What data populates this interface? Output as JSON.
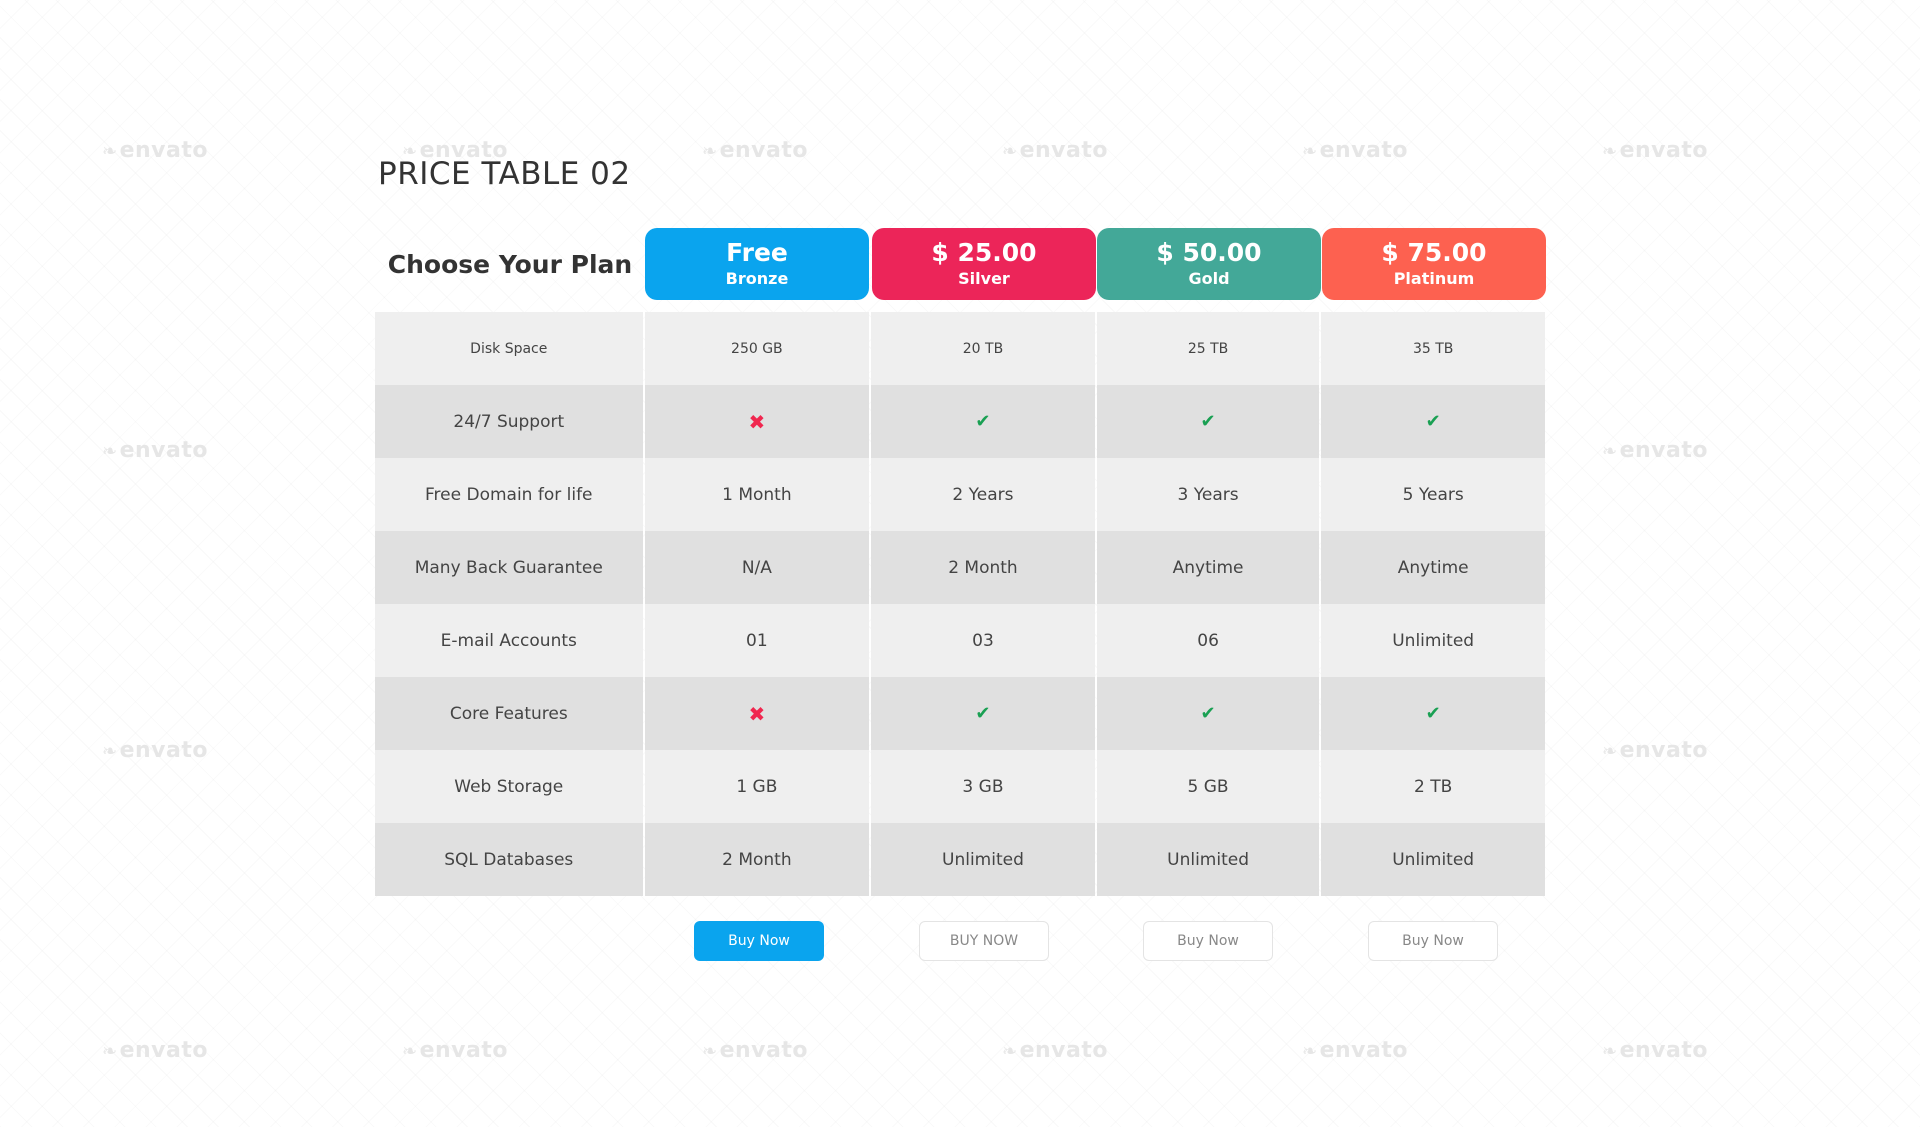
{
  "title": "PRICE TABLE 02",
  "choose_label": "Choose Your Plan",
  "watermark_text": "envato",
  "colors": {
    "bronze": "#0aa4ee",
    "silver": "#ec2559",
    "gold": "#43a898",
    "platinum": "#fd6150",
    "cross": "#f0274f",
    "check": "#1aa053"
  },
  "plans": [
    {
      "price": "Free",
      "tier": "Bronze",
      "button": "Buy Now"
    },
    {
      "price": "$ 25.00",
      "tier": "Silver",
      "button": "BUY NOW"
    },
    {
      "price": "$ 50.00",
      "tier": "Gold",
      "button": "Buy Now"
    },
    {
      "price": "$ 75.00",
      "tier": "Platinum",
      "button": "Buy Now"
    }
  ],
  "rows": [
    {
      "feature": "Disk Space",
      "values": [
        "250 GB",
        "20 TB",
        "25 TB",
        "35 TB"
      ]
    },
    {
      "feature": "24/7 Support",
      "values": [
        "✖",
        "✔",
        "✔",
        "✔"
      ]
    },
    {
      "feature": "Free Domain for life",
      "values": [
        "1 Month",
        "2 Years",
        "3 Years",
        "5 Years"
      ]
    },
    {
      "feature": "Many Back Guarantee",
      "values": [
        "N/A",
        "2 Month",
        "Anytime",
        "Anytime"
      ]
    },
    {
      "feature": "E-mail Accounts",
      "values": [
        "01",
        "03",
        "06",
        "Unlimited"
      ]
    },
    {
      "feature": "Core Features",
      "values": [
        "✖",
        "✔",
        "✔",
        "✔"
      ]
    },
    {
      "feature": "Web Storage",
      "values": [
        "1 GB",
        "3 GB",
        "5 GB",
        "2 TB"
      ]
    },
    {
      "feature": "SQL Databases",
      "values": [
        "2 Month",
        "Unlimited",
        "Unlimited",
        "Unlimited"
      ]
    }
  ]
}
